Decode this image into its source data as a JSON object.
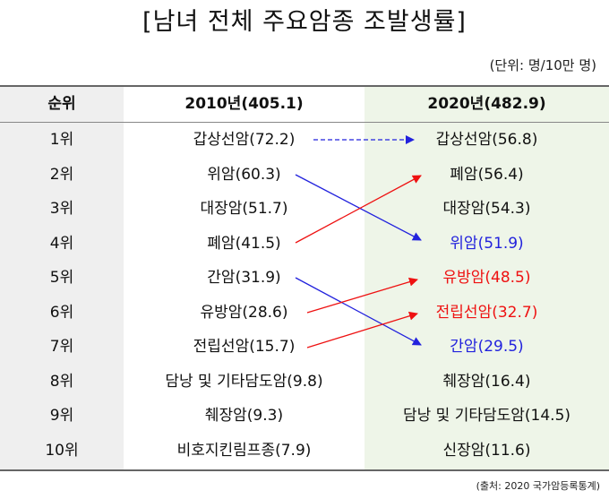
{
  "title": "[남녀 전체 주요암종 조발생률]",
  "unit": "(단위: 명/10만 명)",
  "source": "(출처: 2020 국가암등록통계)",
  "colors": {
    "blue": "#2222dd",
    "red": "#ee1111",
    "rank_bg": "#efefef",
    "col2020_bg": "#eef5e8"
  },
  "table": {
    "headers": {
      "rank": "순위",
      "y2010": "2010년(405.1)",
      "y2020": "2020년(482.9)"
    },
    "rows": [
      {
        "rank": "1위",
        "y2010": "갑상선암(72.2)",
        "y2020": "갑상선암(56.8)"
      },
      {
        "rank": "2위",
        "y2010": "위암(60.3)",
        "y2020": "폐암(56.4)"
      },
      {
        "rank": "3위",
        "y2010": "대장암(51.7)",
        "y2020": "대장암(54.3)"
      },
      {
        "rank": "4위",
        "y2010": "폐암(41.5)",
        "y2020": "위암(51.9)"
      },
      {
        "rank": "5위",
        "y2010": "간암(31.9)",
        "y2020": "유방암(48.5)"
      },
      {
        "rank": "6위",
        "y2010": "유방암(28.6)",
        "y2020": "전립선암(32.7)"
      },
      {
        "rank": "7위",
        "y2010": "전립선암(15.7)",
        "y2020": "간암(29.5)"
      },
      {
        "rank": "8위",
        "y2010": "담낭 및 기타담도암(9.8)",
        "y2020": "췌장암(16.4)"
      },
      {
        "rank": "9위",
        "y2010": "췌장암(9.3)",
        "y2020": "담낭 및 기타담도암(14.5)"
      },
      {
        "rank": "10위",
        "y2010": "비호지킨림프종(7.9)",
        "y2020": "신장암(11.6)"
      }
    ]
  }
}
